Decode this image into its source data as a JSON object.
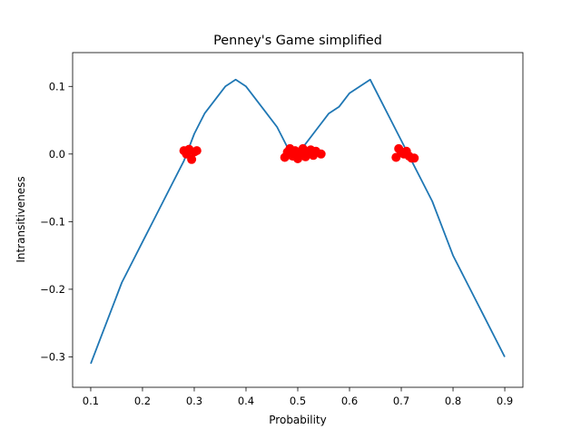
{
  "chart_data": {
    "type": "line",
    "title": "Penney's Game simplified",
    "xlabel": "Probability",
    "ylabel": "Intransitiveness",
    "xlim": [
      0.065,
      0.935
    ],
    "ylim": [
      -0.345,
      0.15
    ],
    "xticks": [
      0.1,
      0.2,
      0.3,
      0.4,
      0.5,
      0.6,
      0.7,
      0.8,
      0.9
    ],
    "yticks": [
      0.1,
      0.0,
      -0.1,
      -0.2,
      -0.3
    ],
    "grid": false,
    "line_color": "#1f77b4",
    "marker_color": "#ff0000",
    "series": [
      {
        "style": "line",
        "x": [
          0.1,
          0.12,
          0.14,
          0.16,
          0.18,
          0.2,
          0.22,
          0.24,
          0.26,
          0.28,
          0.3,
          0.32,
          0.34,
          0.36,
          0.38,
          0.4,
          0.42,
          0.44,
          0.46,
          0.48,
          0.5,
          0.52,
          0.54,
          0.56,
          0.58,
          0.6,
          0.62,
          0.64,
          0.66,
          0.68,
          0.7,
          0.72,
          0.74,
          0.76,
          0.78,
          0.8,
          0.82,
          0.84,
          0.86,
          0.88,
          0.9
        ],
        "y": [
          -0.31,
          -0.27,
          -0.23,
          -0.19,
          -0.16,
          -0.13,
          -0.1,
          -0.07,
          -0.04,
          -0.01,
          0.03,
          0.06,
          0.08,
          0.1,
          0.11,
          0.1,
          0.08,
          0.06,
          0.04,
          0.01,
          0.0,
          0.02,
          0.04,
          0.06,
          0.07,
          0.09,
          0.1,
          0.11,
          0.08,
          0.05,
          0.02,
          -0.01,
          -0.04,
          -0.07,
          -0.11,
          -0.15,
          -0.18,
          -0.21,
          -0.24,
          -0.27,
          -0.3
        ]
      },
      {
        "style": "markers",
        "x": [
          0.28,
          0.285,
          0.29,
          0.295,
          0.3,
          0.305,
          0.475,
          0.48,
          0.485,
          0.49,
          0.495,
          0.5,
          0.505,
          0.51,
          0.515,
          0.52,
          0.525,
          0.53,
          0.535,
          0.545,
          0.69,
          0.695,
          0.7,
          0.705,
          0.71,
          0.715,
          0.72,
          0.725
        ],
        "y": [
          0.005,
          0.0,
          0.007,
          -0.008,
          0.003,
          0.005,
          -0.005,
          0.003,
          0.008,
          -0.003,
          0.005,
          -0.007,
          0.002,
          0.008,
          -0.004,
          0.003,
          0.006,
          -0.002,
          0.004,
          0.0,
          -0.005,
          0.008,
          0.003,
          0.0,
          0.004,
          -0.003,
          -0.006,
          -0.006
        ]
      }
    ]
  }
}
